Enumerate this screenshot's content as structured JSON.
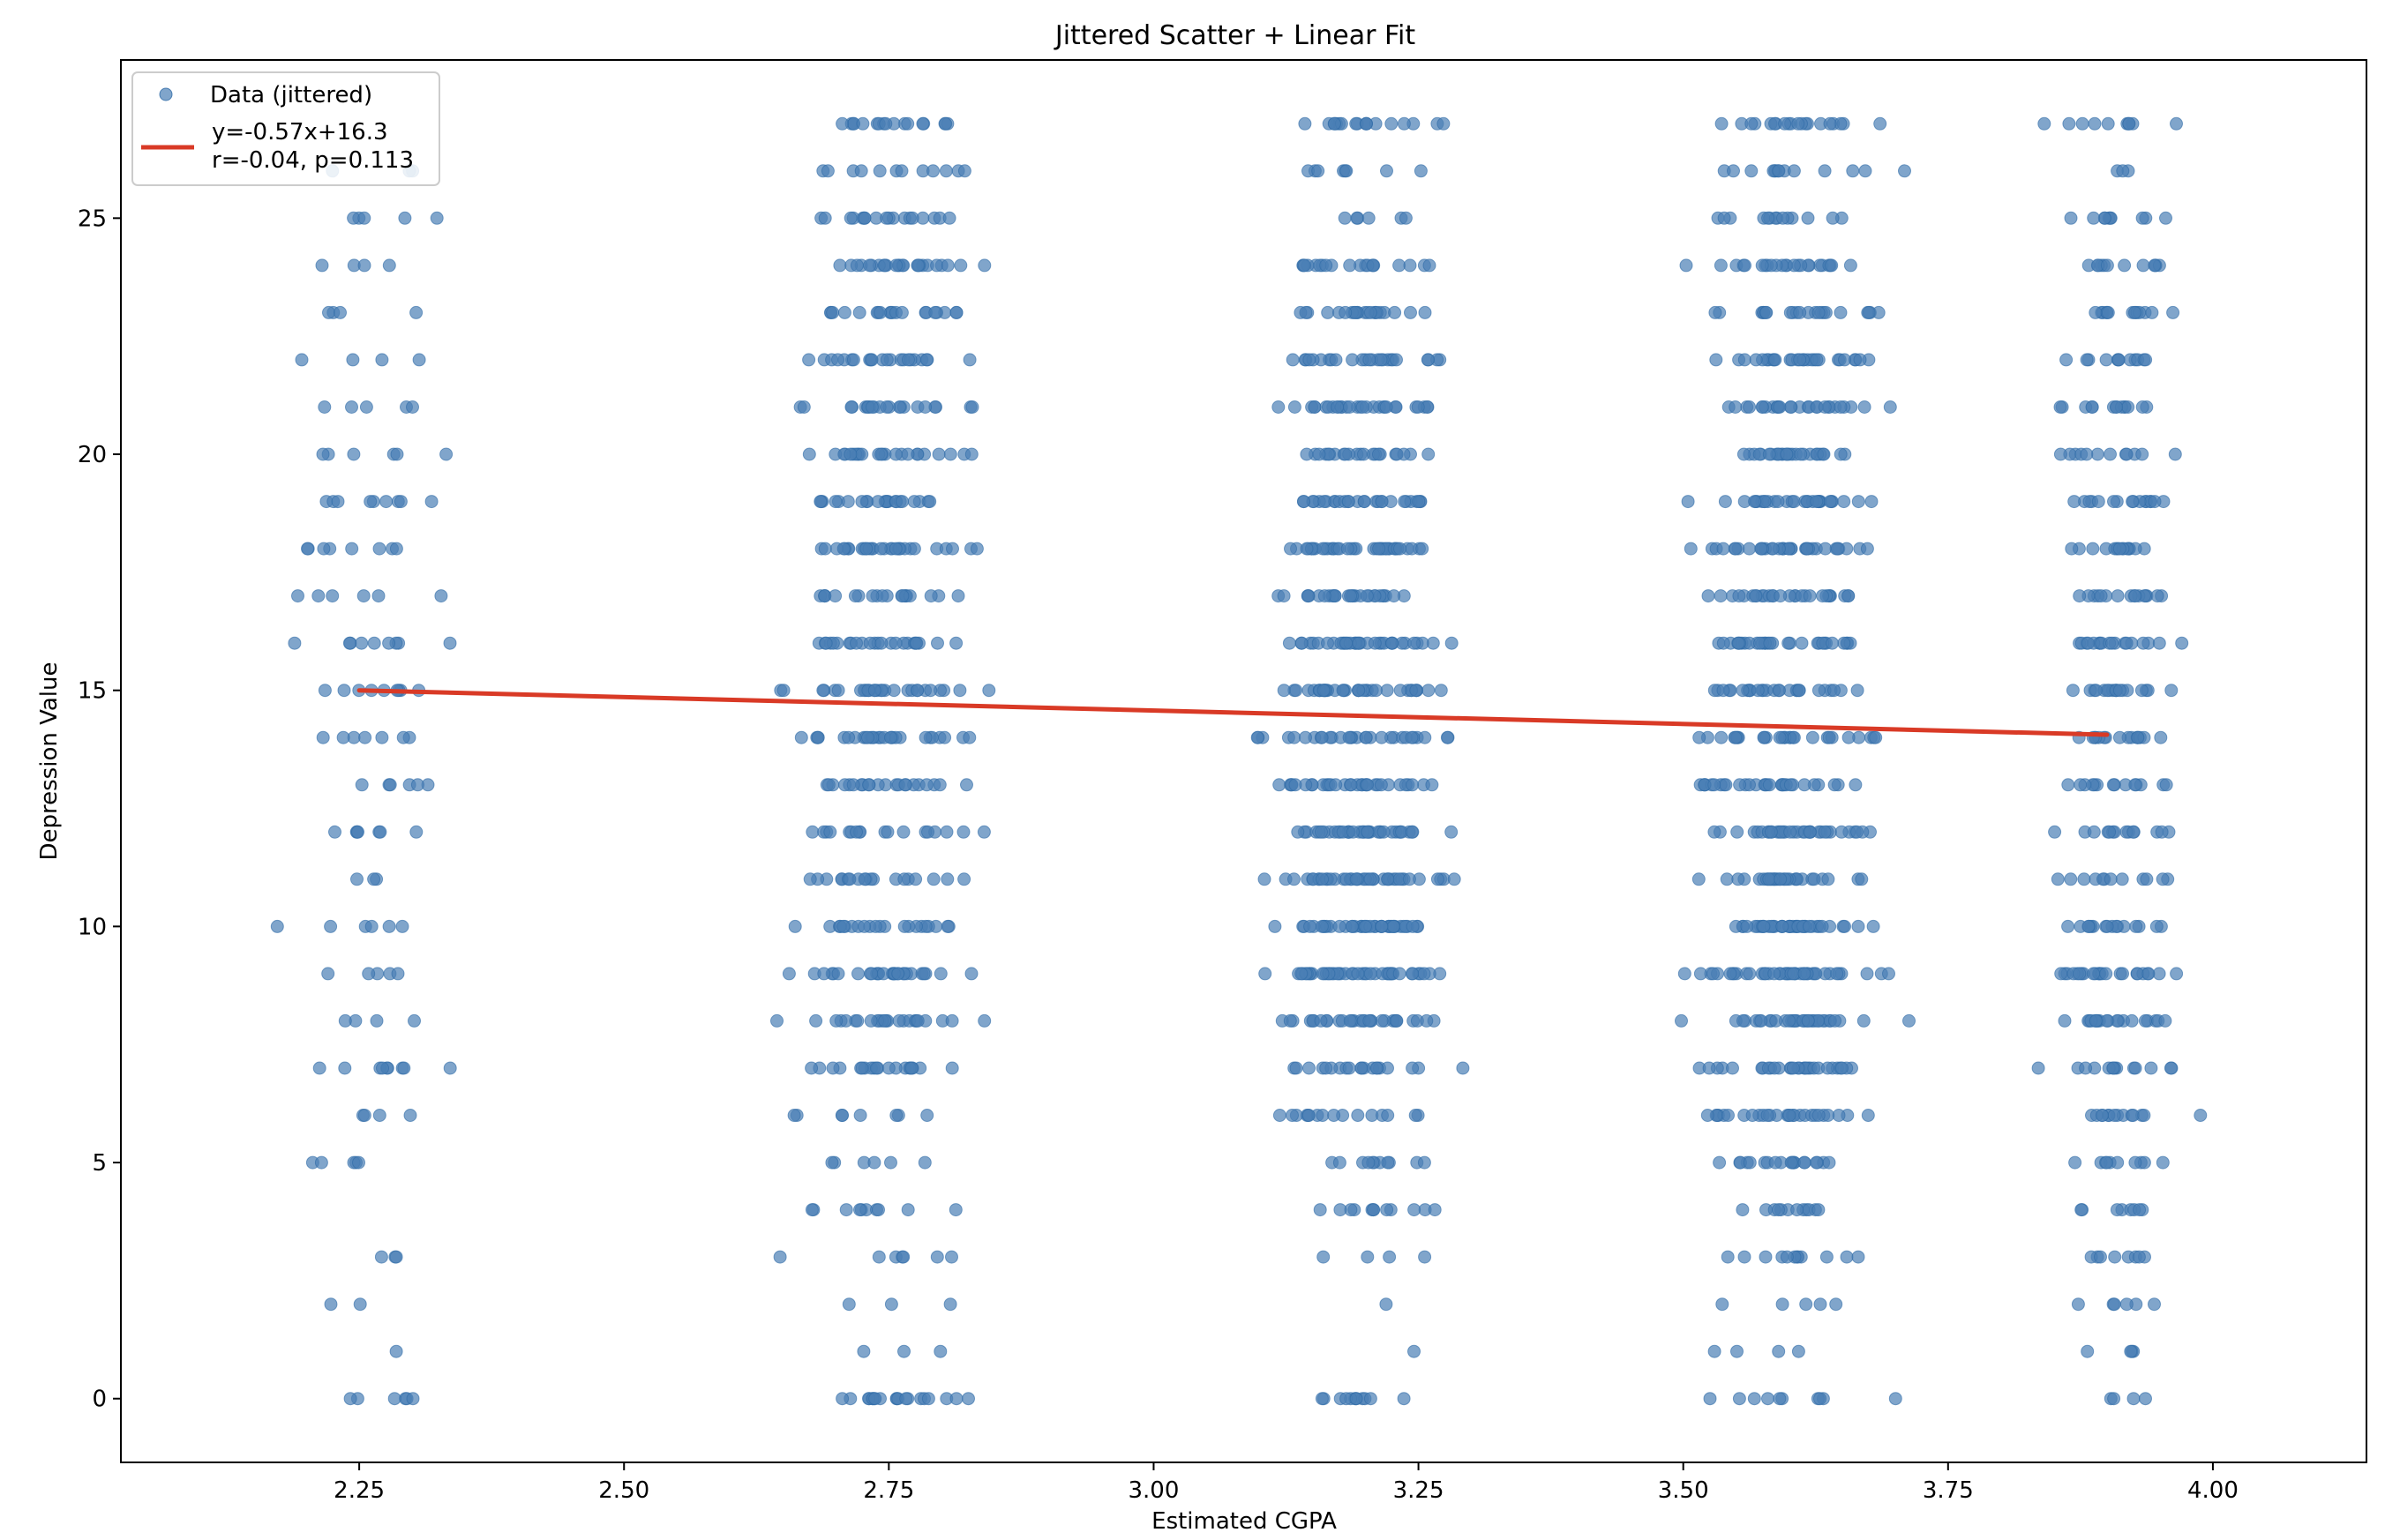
{
  "chart_data": {
    "type": "scatter",
    "title": "Jittered Scatter + Linear Fit",
    "xlabel": "Estimated CGPA",
    "ylabel": "Depression Value",
    "xlim": [
      2.025,
      4.145
    ],
    "ylim": [
      -1.35,
      28.35
    ],
    "xticks": [
      2.25,
      2.5,
      2.75,
      3.0,
      3.25,
      3.5,
      3.75,
      4.0
    ],
    "xtick_labels": [
      "2.25",
      "2.50",
      "2.75",
      "3.00",
      "3.25",
      "3.50",
      "3.75",
      "4.00"
    ],
    "yticks": [
      0,
      5,
      10,
      15,
      20,
      25
    ],
    "ytick_labels": [
      "0",
      "5",
      "10",
      "15",
      "20",
      "25"
    ],
    "grid": false,
    "legend_position": "upper-left",
    "series": [
      {
        "name": "Data (jittered)",
        "color": "#4a7fb5",
        "marker": "circle",
        "clusters": [
          {
            "center": 2.26,
            "spread": 0.06,
            "counts": [
              6,
              1,
              2,
              3,
              0,
              5,
              4,
              9,
              4,
              5,
              6,
              3,
              7,
              6,
              7,
              9,
              9,
              6,
              8,
              9,
              6,
              5,
              4,
              4,
              4,
              5,
              3,
              0
            ]
          },
          {
            "center": 2.745,
            "spread": 0.07,
            "counts": [
              20,
              3,
              3,
              7,
              10,
              6,
              8,
              20,
              24,
              29,
              22,
              19,
              18,
              22,
              28,
              28,
              24,
              20,
              30,
              22,
              24,
              22,
              22,
              20,
              25,
              18,
              12,
              17
            ]
          },
          {
            "center": 3.195,
            "spread": 0.07,
            "counts": [
              12,
              1,
              1,
              4,
              12,
              11,
              16,
              20,
              30,
              44,
              40,
              41,
              38,
              32,
              30,
              38,
              35,
              28,
              40,
              28,
              22,
              30,
              25,
              22,
              20,
              6,
              8,
              18
            ]
          },
          {
            "center": 3.6,
            "spread": 0.07,
            "counts": [
              10,
              4,
              5,
              12,
              12,
              20,
              28,
              30,
              35,
              42,
              40,
              32,
              35,
              30,
              28,
              28,
              30,
              28,
              35,
              30,
              28,
              28,
              28,
              22,
              24,
              14,
              14,
              20
            ]
          },
          {
            "center": 3.91,
            "spread": 0.05,
            "counts": [
              4,
              4,
              6,
              8,
              8,
              10,
              14,
              14,
              20,
              24,
              16,
              12,
              14,
              14,
              16,
              18,
              18,
              16,
              16,
              16,
              12,
              14,
              12,
              14,
              12,
              10,
              3,
              10
            ]
          }
        ]
      },
      {
        "name": "y=-0.57x+16.3\nr=-0.04, p=0.113",
        "type": "line",
        "color": "#d93a26",
        "slope": -0.57,
        "intercept": 16.3,
        "x": [
          2.25,
          3.9
        ],
        "y": [
          15.0,
          14.06
        ]
      }
    ]
  }
}
